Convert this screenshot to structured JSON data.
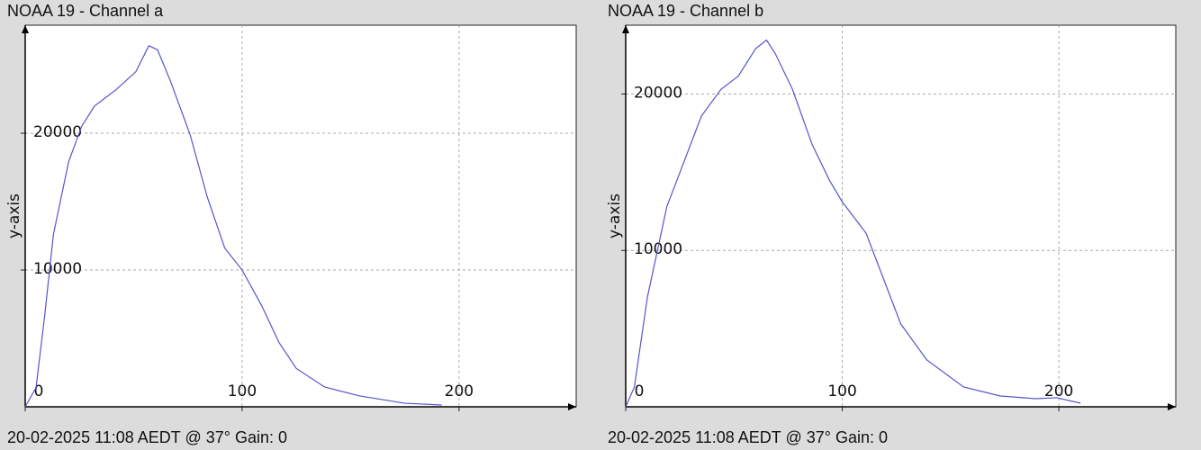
{
  "chart_data": [
    {
      "type": "line",
      "title": "NOAA 19 - Channel a",
      "y_label": "y-axis",
      "footer": "20-02-2025 11:08 AEDT @ 37° Gain: 0",
      "x": [
        0,
        5,
        9,
        13,
        20,
        26,
        32,
        42,
        51,
        57,
        61,
        67,
        76,
        84,
        92,
        100,
        109,
        117,
        125,
        138,
        154,
        175,
        192
      ],
      "series": [
        {
          "color": "#5555cc",
          "values": [
            0,
            1400,
            6700,
            12600,
            17900,
            20500,
            22000,
            23200,
            24500,
            26400,
            26100,
            23800,
            19900,
            15300,
            11600,
            10000,
            7400,
            4700,
            2800,
            1450,
            800,
            260,
            130
          ]
        }
      ],
      "xlim": [
        0,
        254
      ],
      "ylim": [
        0,
        27900
      ],
      "xticks": [
        0,
        100,
        200
      ],
      "yticks": [
        10000,
        20000
      ],
      "grid": true
    },
    {
      "type": "line",
      "title": "NOAA 19 - Channel b",
      "y_label": "y-axis",
      "footer": "20-02-2025 11:08 AEDT @ 37° Gain: 0",
      "x": [
        0,
        4,
        10,
        19,
        27,
        35,
        44,
        52,
        60,
        65,
        69,
        77,
        86,
        94,
        100,
        111,
        119,
        127,
        139,
        156,
        173,
        189,
        199,
        210
      ],
      "series": [
        {
          "color": "#5555cc",
          "values": [
            0,
            1270,
            7000,
            12800,
            15700,
            18600,
            20300,
            21150,
            22900,
            23450,
            22600,
            20300,
            16800,
            14500,
            13100,
            11100,
            8200,
            5300,
            3000,
            1270,
            690,
            520,
            580,
            230
          ]
        }
      ],
      "xlim": [
        0,
        254
      ],
      "ylim": [
        0,
        24400
      ],
      "xticks": [
        0,
        100,
        200
      ],
      "yticks": [
        10000,
        20000
      ],
      "grid": true
    }
  ]
}
